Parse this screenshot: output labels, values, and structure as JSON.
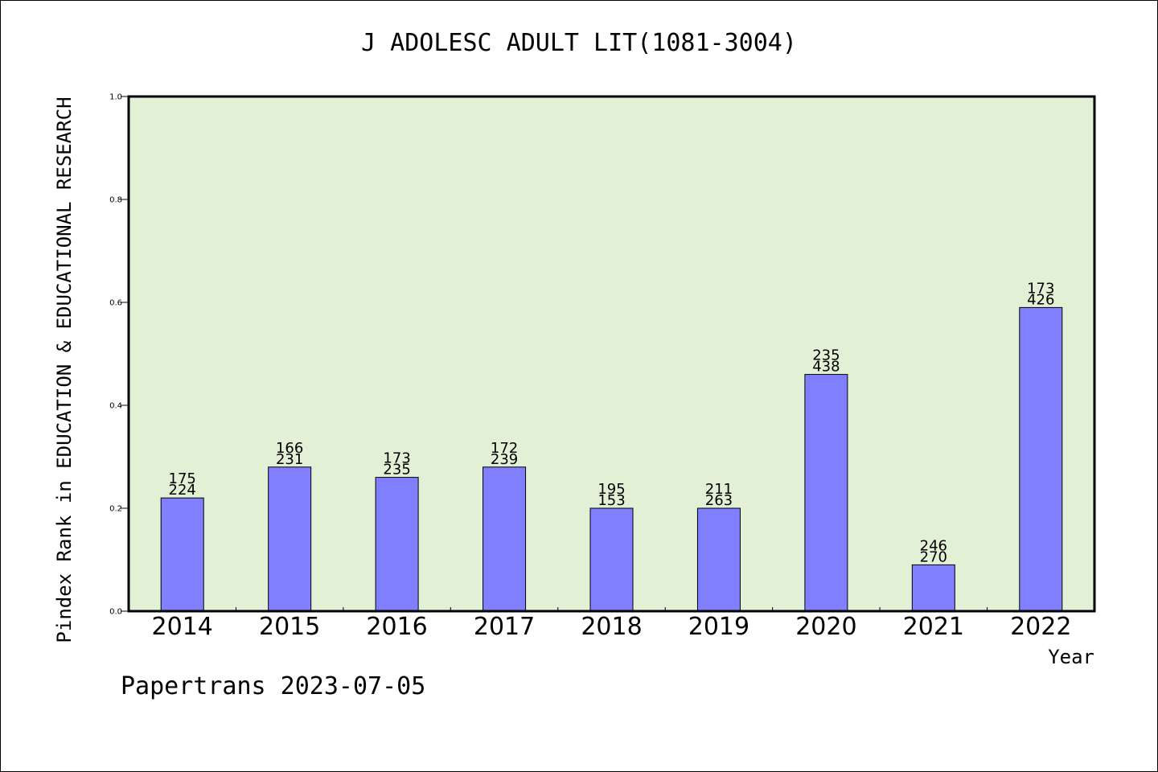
{
  "colors": {
    "plot_background": "#e2f0d6",
    "bar_fill": "#8080ff",
    "bar_stroke": "#000000",
    "axis": "#000000"
  },
  "chart_data": {
    "type": "bar",
    "title": "J ADOLESC ADULT LIT(1081-3004)",
    "xlabel": "Year",
    "ylabel": "Pindex Rank in EDUCATION & EDUCATIONAL RESEARCH",
    "ylim": [
      0,
      1.0
    ],
    "yticks": [
      "0.0",
      "0.2",
      "0.4",
      "0.6",
      "0.8",
      "1.0"
    ],
    "categories": [
      "2014",
      "2015",
      "2016",
      "2017",
      "2018",
      "2019",
      "2020",
      "2021",
      "2022"
    ],
    "values": [
      0.22,
      0.28,
      0.26,
      0.28,
      0.2,
      0.2,
      0.46,
      0.09,
      0.59
    ],
    "annotations_top": [
      "175",
      "166",
      "173",
      "172",
      "195",
      "211",
      "235",
      "246",
      "173"
    ],
    "annotations_bottom": [
      "224",
      "231",
      "235",
      "239",
      "153",
      "263",
      "438",
      "270",
      "426"
    ],
    "grid": false,
    "legend": "none"
  },
  "footer": "Papertrans 2023-07-05"
}
